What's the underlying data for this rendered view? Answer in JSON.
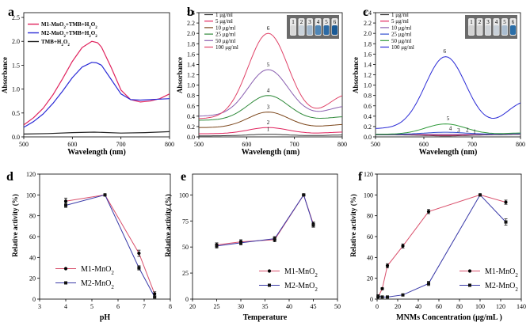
{
  "chart_data": [
    {
      "panel": "a",
      "type": "line",
      "xlabel": "Wavelength (nm)",
      "ylabel": "Absorbance",
      "xlim": [
        500,
        800
      ],
      "ylim": [
        0,
        2.6
      ],
      "xticks": [
        500,
        600,
        700,
        800
      ],
      "yticks": [
        0.0,
        0.5,
        1.0,
        1.5,
        2.0,
        2.5
      ],
      "legend_placement": "top-left",
      "series": [
        {
          "name": "M1-MnO2+TMB+H2O2",
          "legend_html": "M1-MnO<tspan baseline-shift=\"sub\" font-size=\"5\">2</tspan>+TMB+H<tspan baseline-shift=\"sub\" font-size=\"5\">2</tspan>O<tspan baseline-shift=\"sub\" font-size=\"5\">2</tspan>",
          "color": "#e0245e",
          "x": [
            500,
            520,
            540,
            560,
            580,
            600,
            620,
            640,
            652,
            660,
            680,
            700,
            720,
            740,
            760,
            780,
            800
          ],
          "y": [
            0.25,
            0.4,
            0.6,
            0.88,
            1.22,
            1.58,
            1.87,
            2.0,
            1.97,
            1.88,
            1.45,
            0.98,
            0.78,
            0.73,
            0.75,
            0.8,
            0.9
          ]
        },
        {
          "name": "M2-MnO2+TMB+H2O2",
          "legend_html": "M2-MnO<tspan baseline-shift=\"sub\" font-size=\"5\">2</tspan>+TMB+H<tspan baseline-shift=\"sub\" font-size=\"5\">2</tspan>O<tspan baseline-shift=\"sub\" font-size=\"5\">2</tspan>",
          "color": "#2b2bd6",
          "x": [
            500,
            520,
            540,
            560,
            580,
            600,
            620,
            640,
            650,
            660,
            680,
            700,
            720,
            740,
            760,
            780,
            800
          ],
          "y": [
            0.2,
            0.32,
            0.48,
            0.7,
            0.96,
            1.24,
            1.46,
            1.56,
            1.55,
            1.5,
            1.2,
            0.9,
            0.78,
            0.77,
            0.78,
            0.79,
            0.8
          ]
        },
        {
          "name": "TMB+H2O2",
          "legend_html": "TMB+H<tspan baseline-shift=\"sub\" font-size=\"5\">2</tspan>O<tspan baseline-shift=\"sub\" font-size=\"5\">2</tspan>",
          "color": "#222222",
          "x": [
            500,
            550,
            600,
            645,
            700,
            750,
            800
          ],
          "y": [
            0.06,
            0.07,
            0.09,
            0.1,
            0.08,
            0.09,
            0.11
          ]
        }
      ]
    },
    {
      "panel": "b",
      "type": "line",
      "xlabel": "Wavelength (nm)",
      "ylabel": "Absorbance",
      "xlim": [
        500,
        800
      ],
      "ylim": [
        0,
        2.4
      ],
      "xticks": [
        500,
        600,
        700,
        800
      ],
      "yticks": [
        0.0,
        0.2,
        0.4,
        0.6,
        0.8,
        1.0,
        1.2,
        1.4,
        1.6,
        1.8,
        2.0,
        2.2,
        2.4
      ],
      "legend_placement": "top-left",
      "inset": {
        "type": "vial-photo",
        "labels": [
          "1",
          "2",
          "3",
          "4",
          "5",
          "6"
        ],
        "placement": "top-right"
      },
      "series": [
        {
          "name": "1 μg/ml",
          "color": "#333333",
          "label": "1",
          "peak": 0.05,
          "base": 0.02,
          "end": 0.04
        },
        {
          "name": "5 μg/ml",
          "color": "#e0245e",
          "label": "2",
          "peak": 0.18,
          "base": 0.06,
          "end": 0.1
        },
        {
          "name": "10 μg/ml",
          "color": "#7a4418",
          "label": "3",
          "peak": 0.48,
          "base": 0.18,
          "end": 0.25
        },
        {
          "name": "25 μg/ml",
          "color": "#2f8a3a",
          "label": "4",
          "peak": 0.8,
          "base": 0.32,
          "end": 0.4
        },
        {
          "name": "50 μg/ml",
          "color": "#8a60b0",
          "label": "5",
          "peak": 1.3,
          "base": 0.4,
          "end": 0.62
        },
        {
          "name": "100 μg/ml",
          "color": "#e04368",
          "label": "6",
          "peak": 2.0,
          "base": 0.35,
          "end": 0.88
        }
      ]
    },
    {
      "panel": "c",
      "type": "line",
      "xlabel": "Wavelength (nm)",
      "ylabel": "Absorbance",
      "xlim": [
        500,
        800
      ],
      "ylim": [
        0,
        2.4
      ],
      "xticks": [
        500,
        600,
        700,
        800
      ],
      "yticks": [
        0.0,
        0.2,
        0.4,
        0.6,
        0.8,
        1.0,
        1.2,
        1.4,
        1.6,
        1.8,
        2.0,
        2.2,
        2.4
      ],
      "legend_placement": "top-left",
      "inset": {
        "type": "vial-photo",
        "labels": [
          "1",
          "2",
          "3",
          "4",
          "5",
          "6"
        ],
        "placement": "top-right"
      },
      "series": [
        {
          "name": "1 μg/ml",
          "color": "#333333",
          "label": "1",
          "peak": 0.02,
          "base": 0.04,
          "end": 0.05
        },
        {
          "name": "5 μg/ml",
          "color": "#e0245e",
          "label": "2",
          "peak": 0.03,
          "base": 0.05,
          "end": 0.06
        },
        {
          "name": "10 μg/ml",
          "color": "#8a60b0",
          "label": "3",
          "peak": 0.05,
          "base": 0.05,
          "end": 0.06
        },
        {
          "name": "25 μg/ml",
          "color": "#3050d0",
          "label": "4",
          "peak": 0.09,
          "base": 0.05,
          "end": 0.07
        },
        {
          "name": "50 μg/ml",
          "color": "#2f9a3a",
          "label": "5",
          "peak": 0.25,
          "base": 0.05,
          "end": 0.08
        },
        {
          "name": "100 μg/ml",
          "color": "#2b2bd6",
          "label": "6",
          "peak": 1.55,
          "base": 0.16,
          "end": 0.75
        }
      ]
    },
    {
      "panel": "d",
      "type": "line",
      "xlabel": "pH",
      "ylabel": "Relative activity (%)",
      "xlim": [
        3,
        8
      ],
      "ylim": [
        0,
        120
      ],
      "xticks": [
        3,
        4,
        5,
        6,
        7,
        8
      ],
      "yticks": [
        0,
        20,
        40,
        60,
        80,
        100,
        120
      ],
      "legend_placement": "bottom-left",
      "series": [
        {
          "name": "M1-MnO2",
          "legend_html": "M1-MnO<tspan baseline-shift=\"sub\" font-size=\"7\">2</tspan>",
          "color": "#d9506c",
          "marker": "circle",
          "x": [
            4,
            5.5,
            6.8,
            7.4
          ],
          "y": [
            94,
            100,
            44,
            5
          ],
          "err": [
            3,
            1,
            3,
            2
          ]
        },
        {
          "name": "M2-MnO2",
          "legend_html": "M2-MnO<tspan baseline-shift=\"sub\" font-size=\"7\">2</tspan>",
          "color": "#3a3aa8",
          "marker": "square",
          "x": [
            4,
            5.5,
            6.8,
            7.4
          ],
          "y": [
            90,
            100,
            30,
            2
          ],
          "err": [
            2,
            1,
            2,
            1
          ]
        }
      ]
    },
    {
      "panel": "e",
      "type": "line",
      "xlabel": "Temperature",
      "ylabel": "Relative activity (%)",
      "xlim": [
        20,
        50
      ],
      "ylim": [
        0,
        120
      ],
      "xticks": [
        20,
        25,
        30,
        35,
        40,
        45,
        50
      ],
      "yticks": [
        0,
        25,
        50,
        75,
        100
      ],
      "legend_placement": "center-right",
      "series": [
        {
          "name": "M1-MnO2",
          "legend_html": "M1-MnO<tspan baseline-shift=\"sub\" font-size=\"7\">2</tspan>",
          "color": "#d9506c",
          "marker": "circle",
          "x": [
            25,
            30,
            37,
            43,
            45
          ],
          "y": [
            52,
            55,
            57,
            100,
            72
          ],
          "err": [
            2,
            2,
            2,
            1,
            2
          ]
        },
        {
          "name": "M2-MnO2",
          "legend_html": "M2-MnO<tspan baseline-shift=\"sub\" font-size=\"7\">2</tspan>",
          "color": "#3a3aa8",
          "marker": "square",
          "x": [
            25,
            30,
            37,
            43,
            45
          ],
          "y": [
            51,
            54,
            58,
            100,
            71
          ],
          "err": [
            2,
            2,
            2,
            1,
            2
          ]
        }
      ]
    },
    {
      "panel": "f",
      "type": "line",
      "xlabel": "MNMs Concentration (μg/mL )",
      "ylabel": "Relative activity (%)",
      "xlim": [
        0,
        140
      ],
      "ylim": [
        0,
        120
      ],
      "xticks": [
        0,
        20,
        40,
        60,
        80,
        100,
        120,
        140
      ],
      "yticks": [
        0,
        20,
        40,
        60,
        80,
        100,
        120
      ],
      "legend_placement": "center-right",
      "series": [
        {
          "name": "M1-MnO2",
          "legend_html": "M1-MnO<tspan baseline-shift=\"sub\" font-size=\"7\">2</tspan>",
          "color": "#d9506c",
          "marker": "circle",
          "x": [
            1,
            5,
            10,
            25,
            50,
            100,
            125
          ],
          "y": [
            2,
            10,
            32,
            51,
            84,
            100,
            93
          ],
          "err": [
            1,
            1,
            2,
            2,
            2,
            1,
            2
          ]
        },
        {
          "name": "M2-MnO2",
          "legend_html": "M2-MnO<tspan baseline-shift=\"sub\" font-size=\"7\">2</tspan>",
          "color": "#3a3aa8",
          "marker": "square",
          "x": [
            1,
            5,
            10,
            25,
            50,
            100,
            125
          ],
          "y": [
            3,
            2,
            2,
            4,
            15,
            100,
            74
          ],
          "err": [
            1,
            1,
            1,
            1,
            2,
            1,
            3
          ]
        }
      ]
    }
  ]
}
